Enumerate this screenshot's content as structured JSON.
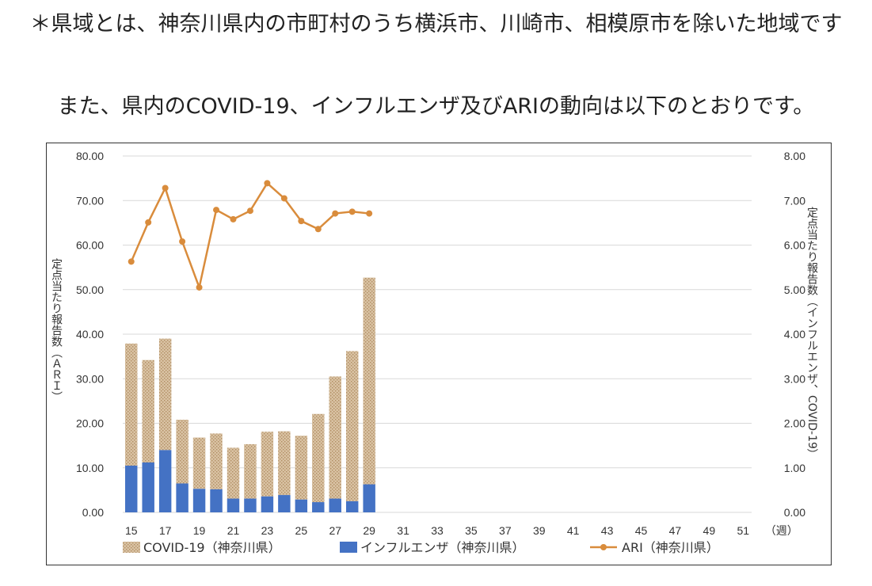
{
  "text": {
    "note": "＊県域とは、神奈川県内の市町村のうち横浜市、川崎市、相模原市を除いた地域です",
    "intro": "また、県内のCOVID-19、インフルエンザ及びARIの動向は以下のとおりです。"
  },
  "colors": {
    "covid": "#d9c2a3",
    "covid_dot": "#b08d62",
    "flu": "#4472c4",
    "ari": "#d98c3c",
    "grid": "#d9d9d9"
  },
  "chart_data": {
    "type": "bar",
    "x_label": "（週）",
    "x_ticks": [
      "15",
      "17",
      "19",
      "21",
      "23",
      "25",
      "27",
      "29",
      "31",
      "33",
      "35",
      "37",
      "39",
      "41",
      "43",
      "45",
      "47",
      "49",
      "51"
    ],
    "weeks": [
      15,
      16,
      17,
      18,
      19,
      20,
      21,
      22,
      23,
      24,
      25,
      26,
      27,
      28,
      29
    ],
    "x_range": [
      15,
      52
    ],
    "left_axis": {
      "title": "定点当たり報告数（ＡＲＩ）",
      "range": [
        0,
        80
      ],
      "ticks": [
        "0.00",
        "10.00",
        "20.00",
        "30.00",
        "40.00",
        "50.00",
        "60.00",
        "70.00",
        "80.00"
      ]
    },
    "right_axis": {
      "title": "定点当たり報告数（インフルエンザ、COVID-19）",
      "range": [
        0,
        8
      ],
      "ticks": [
        "0.00",
        "1.00",
        "2.00",
        "3.00",
        "4.00",
        "5.00",
        "6.00",
        "7.00",
        "8.00"
      ]
    },
    "grid": true,
    "legend_position": "bottom",
    "series": [
      {
        "name": "COVID-19（神奈川県）",
        "kind": "bar",
        "axis": "right",
        "values": [
          2.74,
          2.3,
          2.5,
          1.43,
          1.15,
          1.25,
          1.14,
          1.22,
          1.45,
          1.43,
          1.43,
          1.98,
          2.74,
          3.37,
          4.64
        ]
      },
      {
        "name": "インフルエンザ（神奈川県）",
        "kind": "bar",
        "axis": "right",
        "values": [
          1.05,
          1.12,
          1.4,
          0.65,
          0.53,
          0.52,
          0.31,
          0.31,
          0.36,
          0.39,
          0.29,
          0.23,
          0.31,
          0.25,
          0.63
        ]
      },
      {
        "name": "ARI（神奈川県）",
        "kind": "line",
        "axis": "left",
        "values": [
          56.3,
          65.1,
          72.8,
          60.8,
          50.5,
          67.9,
          65.8,
          67.7,
          73.9,
          70.5,
          65.4,
          63.6,
          67.1,
          67.5,
          67.1
        ]
      }
    ]
  }
}
